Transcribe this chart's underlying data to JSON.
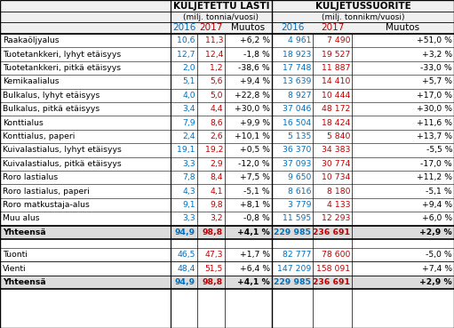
{
  "title_left": "KULJETETTU LASTI",
  "title_right": "KULJETUSSUORITE",
  "subtitle_left": "(milj. tonnia/vuosi)",
  "subtitle_right": "(milj. tonnikm/vuosi)",
  "rows": [
    [
      "Raakaöljyalus",
      "10,6",
      "11,3",
      "+6,2 %",
      "4 961",
      "7 490",
      "+51,0 %"
    ],
    [
      "Tuotetankkeri, lyhyt etäisyys",
      "12,7",
      "12,4",
      "-1,8 %",
      "18 923",
      "19 527",
      "+3,2 %"
    ],
    [
      "Tuotetankkeri, pitkä etäisyys",
      "2,0",
      "1,2",
      "-38,6 %",
      "17 748",
      "11 887",
      "-33,0 %"
    ],
    [
      "Kemikaalialus",
      "5,1",
      "5,6",
      "+9,4 %",
      "13 639",
      "14 410",
      "+5,7 %"
    ],
    [
      "Bulkalus, lyhyt etäisyys",
      "4,0",
      "5,0",
      "+22,8 %",
      "8 927",
      "10 444",
      "+17,0 %"
    ],
    [
      "Bulkalus, pitkä etäisyys",
      "3,4",
      "4,4",
      "+30,0 %",
      "37 046",
      "48 172",
      "+30,0 %"
    ],
    [
      "Konttialus",
      "7,9",
      "8,6",
      "+9,9 %",
      "16 504",
      "18 424",
      "+11,6 %"
    ],
    [
      "Konttialus, paperi",
      "2,4",
      "2,6",
      "+10,1 %",
      "5 135",
      "5 840",
      "+13,7 %"
    ],
    [
      "Kuivalastialus, lyhyt etäisyys",
      "19,1",
      "19,2",
      "+0,5 %",
      "36 370",
      "34 383",
      "-5,5 %"
    ],
    [
      "Kuivalastialus, pitkä etäisyys",
      "3,3",
      "2,9",
      "-12,0 %",
      "37 093",
      "30 774",
      "-17,0 %"
    ],
    [
      "Roro lastialus",
      "7,8",
      "8,4",
      "+7,5 %",
      "9 650",
      "10 734",
      "+11,2 %"
    ],
    [
      "Roro lastialus, paperi",
      "4,3",
      "4,1",
      "-5,1 %",
      "8 616",
      "8 180",
      "-5,1 %"
    ],
    [
      "Roro matkustaja-alus",
      "9,1",
      "9,8",
      "+8,1 %",
      "3 779",
      "4 133",
      "+9,4 %"
    ],
    [
      "Muu alus",
      "3,3",
      "3,2",
      "-0,8 %",
      "11 595",
      "12 293",
      "+6,0 %"
    ]
  ],
  "total_row": [
    "Yhteensä",
    "94,9",
    "98,8",
    "+4,1 %",
    "229 985",
    "236 691",
    "+2,9 %"
  ],
  "extra_rows": [
    [
      "Tuonti",
      "46,5",
      "47,3",
      "+1,7 %",
      "82 777",
      "78 600",
      "-5,0 %"
    ],
    [
      "Vienti",
      "48,4",
      "51,5",
      "+6,4 %",
      "147 209",
      "158 091",
      "+7,4 %"
    ]
  ],
  "total_row2": [
    "Yhteensä",
    "94,9",
    "98,8",
    "+4,1 %",
    "229 985",
    "236 691",
    "+2,9 %"
  ],
  "color_blue": "#0070C0",
  "color_red": "#C00000",
  "color_black": "#000000",
  "color_gray_bg": "#DCDCDC"
}
